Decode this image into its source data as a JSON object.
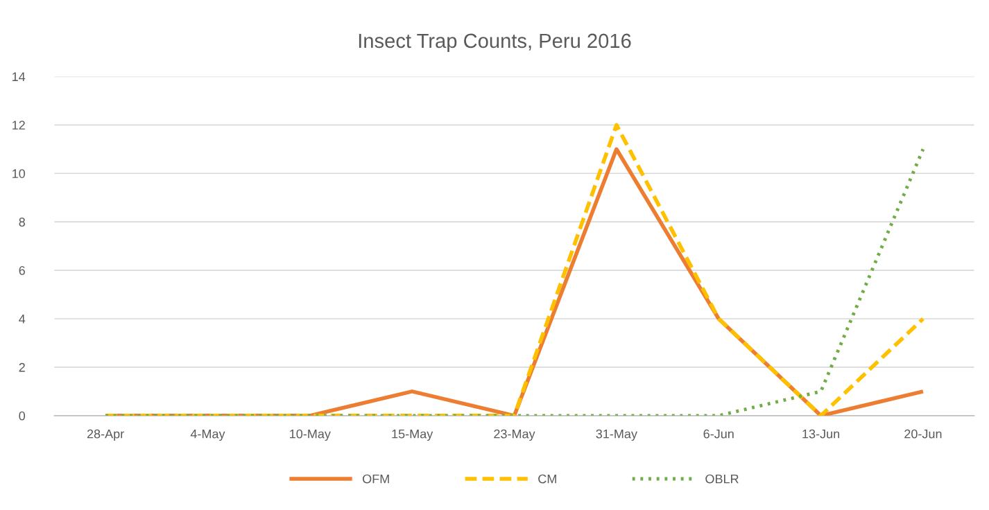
{
  "chart_data": {
    "type": "line",
    "title": "Insect Trap Counts, Peru 2016",
    "categories": [
      "28-Apr",
      "4-May",
      "10-May",
      "15-May",
      "23-May",
      "31-May",
      "6-Jun",
      "13-Jun",
      "20-Jun"
    ],
    "series": [
      {
        "name": "OFM",
        "color": "#ed7d31",
        "line_style": "solid",
        "values": [
          0,
          0,
          0,
          1,
          0,
          11,
          4,
          0,
          1
        ]
      },
      {
        "name": "CM",
        "color": "#ffc000",
        "line_style": "dashed",
        "values": [
          0,
          0,
          0,
          0,
          0,
          12,
          4,
          0,
          4
        ]
      },
      {
        "name": "OBLR",
        "color": "#70ad47",
        "line_style": "dotted",
        "values": [
          0,
          0,
          0,
          0,
          0,
          0,
          0,
          1,
          11
        ]
      }
    ],
    "ylim": [
      0,
      14
    ],
    "yticks": [
      0,
      2,
      4,
      6,
      8,
      10,
      12,
      14
    ],
    "grid": "y",
    "legend": "bottom",
    "marker": "none"
  }
}
